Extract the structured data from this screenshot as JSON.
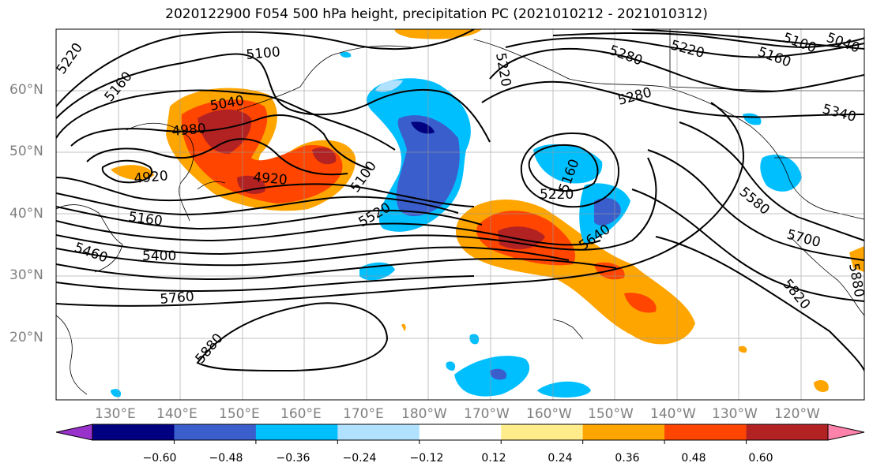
{
  "title": "2020122900 F054 500 hPa height, precipitation PC (2021010212 - 2021010312)",
  "lat_labels": [
    "60°N",
    "50°N",
    "40°N",
    "30°N",
    "20°N"
  ],
  "lon_labels": [
    "130°E",
    "140°E",
    "150°E",
    "160°E",
    "170°E",
    "180°W",
    "170°W",
    "160°W",
    "150°W",
    "140°W",
    "130°W",
    "120°W"
  ],
  "contour_labels": [
    "5220",
    "5160",
    "5100",
    "5040",
    "4980",
    "4920",
    "4920",
    "5160",
    "5460",
    "5400",
    "5760",
    "5880",
    "5520",
    "5100",
    "5220",
    "5220",
    "5160",
    "5280",
    "5280",
    "5220",
    "5160",
    "5100",
    "5040",
    "5340",
    "5580",
    "5640",
    "5700",
    "5820",
    "5880"
  ],
  "colorbar": {
    "tick_labels": [
      "−0.60",
      "−0.48",
      "−0.36",
      "−0.24",
      "−0.12",
      "0.12",
      "0.24",
      "0.36",
      "0.48",
      "0.60"
    ],
    "colors": [
      "#9932cc",
      "#000080",
      "#3a5fcd",
      "#00bfff",
      "#b0e2ff",
      "#ffffff",
      "#ffec8b",
      "#ffa500",
      "#ff4500",
      "#b22222",
      "#ff82ab"
    ]
  },
  "colors": {
    "blue_light": "#b0e2ff",
    "blue": "#00bfff",
    "blue_mid": "#3a5fcd",
    "navy": "#000080",
    "yellow": "#ffec8b",
    "orange": "#ffa500",
    "red_orange": "#ff4500",
    "dark_red": "#b22222"
  }
}
